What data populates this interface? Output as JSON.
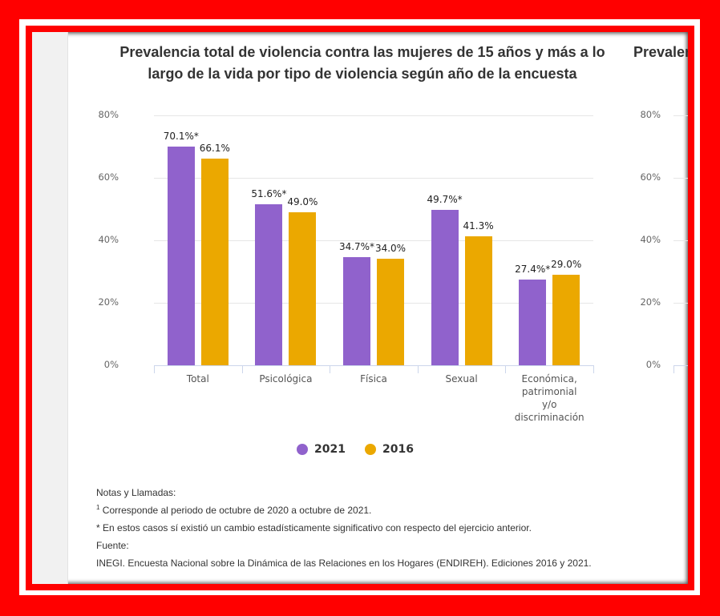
{
  "left_chart": {
    "title": "Prevalencia total de violencia contra las mujeres de 15 años y más a lo largo de la vida por tipo de violencia según año de la encuesta"
  },
  "right_chart": {
    "title_partial": "Prevalen",
    "y_ticks": [
      "80%",
      "60%",
      "40%",
      "20%",
      "0%"
    ]
  },
  "legend": {
    "items": [
      {
        "label": "2021",
        "color": "#9062cc"
      },
      {
        "label": "2016",
        "color": "#eba800"
      }
    ]
  },
  "notes": {
    "heading": "Notas y Llamadas:",
    "footnote_1_marker": "1",
    "footnote_1": "Corresponde al periodo de octubre de 2020 a octubre de 2021.",
    "footnote_star": "* En estos casos sí existió un cambio estadísticamente significativo con respecto del ejercicio anterior.",
    "source_heading": "Fuente:",
    "source": "INEGI. Encuesta Nacional sobre la Dinámica de las Relaciones en los Hogares (ENDIREH). Ediciones 2016 y 2021."
  },
  "chart_data": {
    "type": "bar",
    "title": "Prevalencia total de violencia contra las mujeres de 15 años y más a lo largo de la vida por tipo de violencia según año de la encuesta",
    "categories": [
      "Total",
      "Psicológica",
      "Física",
      "Sexual",
      "Económica, patrimonial y/o discriminación"
    ],
    "category_lines": [
      [
        "Total"
      ],
      [
        "Psicológica"
      ],
      [
        "Física"
      ],
      [
        "Sexual"
      ],
      [
        "Económica,",
        "patrimonial",
        "y/o",
        "discriminación"
      ]
    ],
    "series": [
      {
        "name": "2021",
        "color": "#9062cc",
        "values": [
          70.1,
          51.6,
          34.7,
          49.7,
          27.4
        ],
        "labels": [
          "70.1%*",
          "51.6%*",
          "34.7%*",
          "49.7%*",
          "27.4%*"
        ]
      },
      {
        "name": "2016",
        "color": "#eba800",
        "values": [
          66.1,
          49.0,
          34.0,
          41.3,
          29.0
        ],
        "labels": [
          "66.1%",
          "49.0%",
          "34.0%",
          "41.3%",
          "29.0%"
        ]
      }
    ],
    "y_ticks": [
      "80%",
      "60%",
      "40%",
      "20%",
      "0%"
    ],
    "xlabel": "",
    "ylabel": "",
    "ylim": [
      0,
      80
    ],
    "grid": true,
    "legend_position": "bottom"
  }
}
